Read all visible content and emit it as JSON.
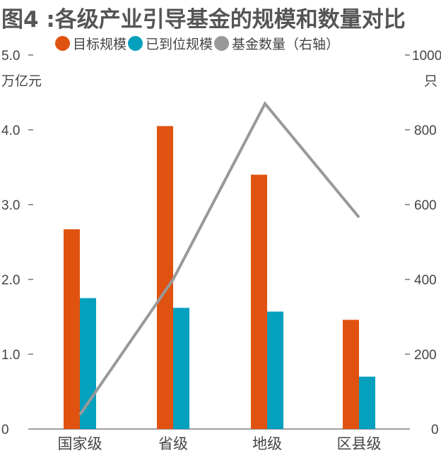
{
  "chart_data": {
    "type": "bar",
    "title": "图4 :各级产业引导基金的规模和数量对比",
    "categories": [
      "国家级",
      "省级",
      "地级",
      "区县级"
    ],
    "series": [
      {
        "name": "目标规模",
        "type": "bar",
        "axis": "left",
        "color": "#E0520F",
        "values": [
          2.67,
          4.05,
          3.4,
          1.46
        ]
      },
      {
        "name": "已到位规模",
        "type": "bar",
        "axis": "left",
        "color": "#04A0BE",
        "values": [
          1.75,
          1.62,
          1.57,
          0.7
        ]
      },
      {
        "name": "基金数量（右轴）",
        "type": "line",
        "axis": "right",
        "color": "#999999",
        "values": [
          38,
          400,
          870,
          566
        ]
      }
    ],
    "y_left": {
      "label": "万亿元",
      "lim": [
        0,
        5
      ],
      "ticks": [
        "0",
        "1.0",
        "2.0",
        "3.0",
        "4.0",
        "5.0"
      ]
    },
    "y_right": {
      "label": "只",
      "lim": [
        0,
        1000
      ],
      "ticks": [
        "0",
        "200",
        "400",
        "600",
        "800",
        "1000"
      ]
    },
    "grid": false,
    "legend": "top"
  }
}
